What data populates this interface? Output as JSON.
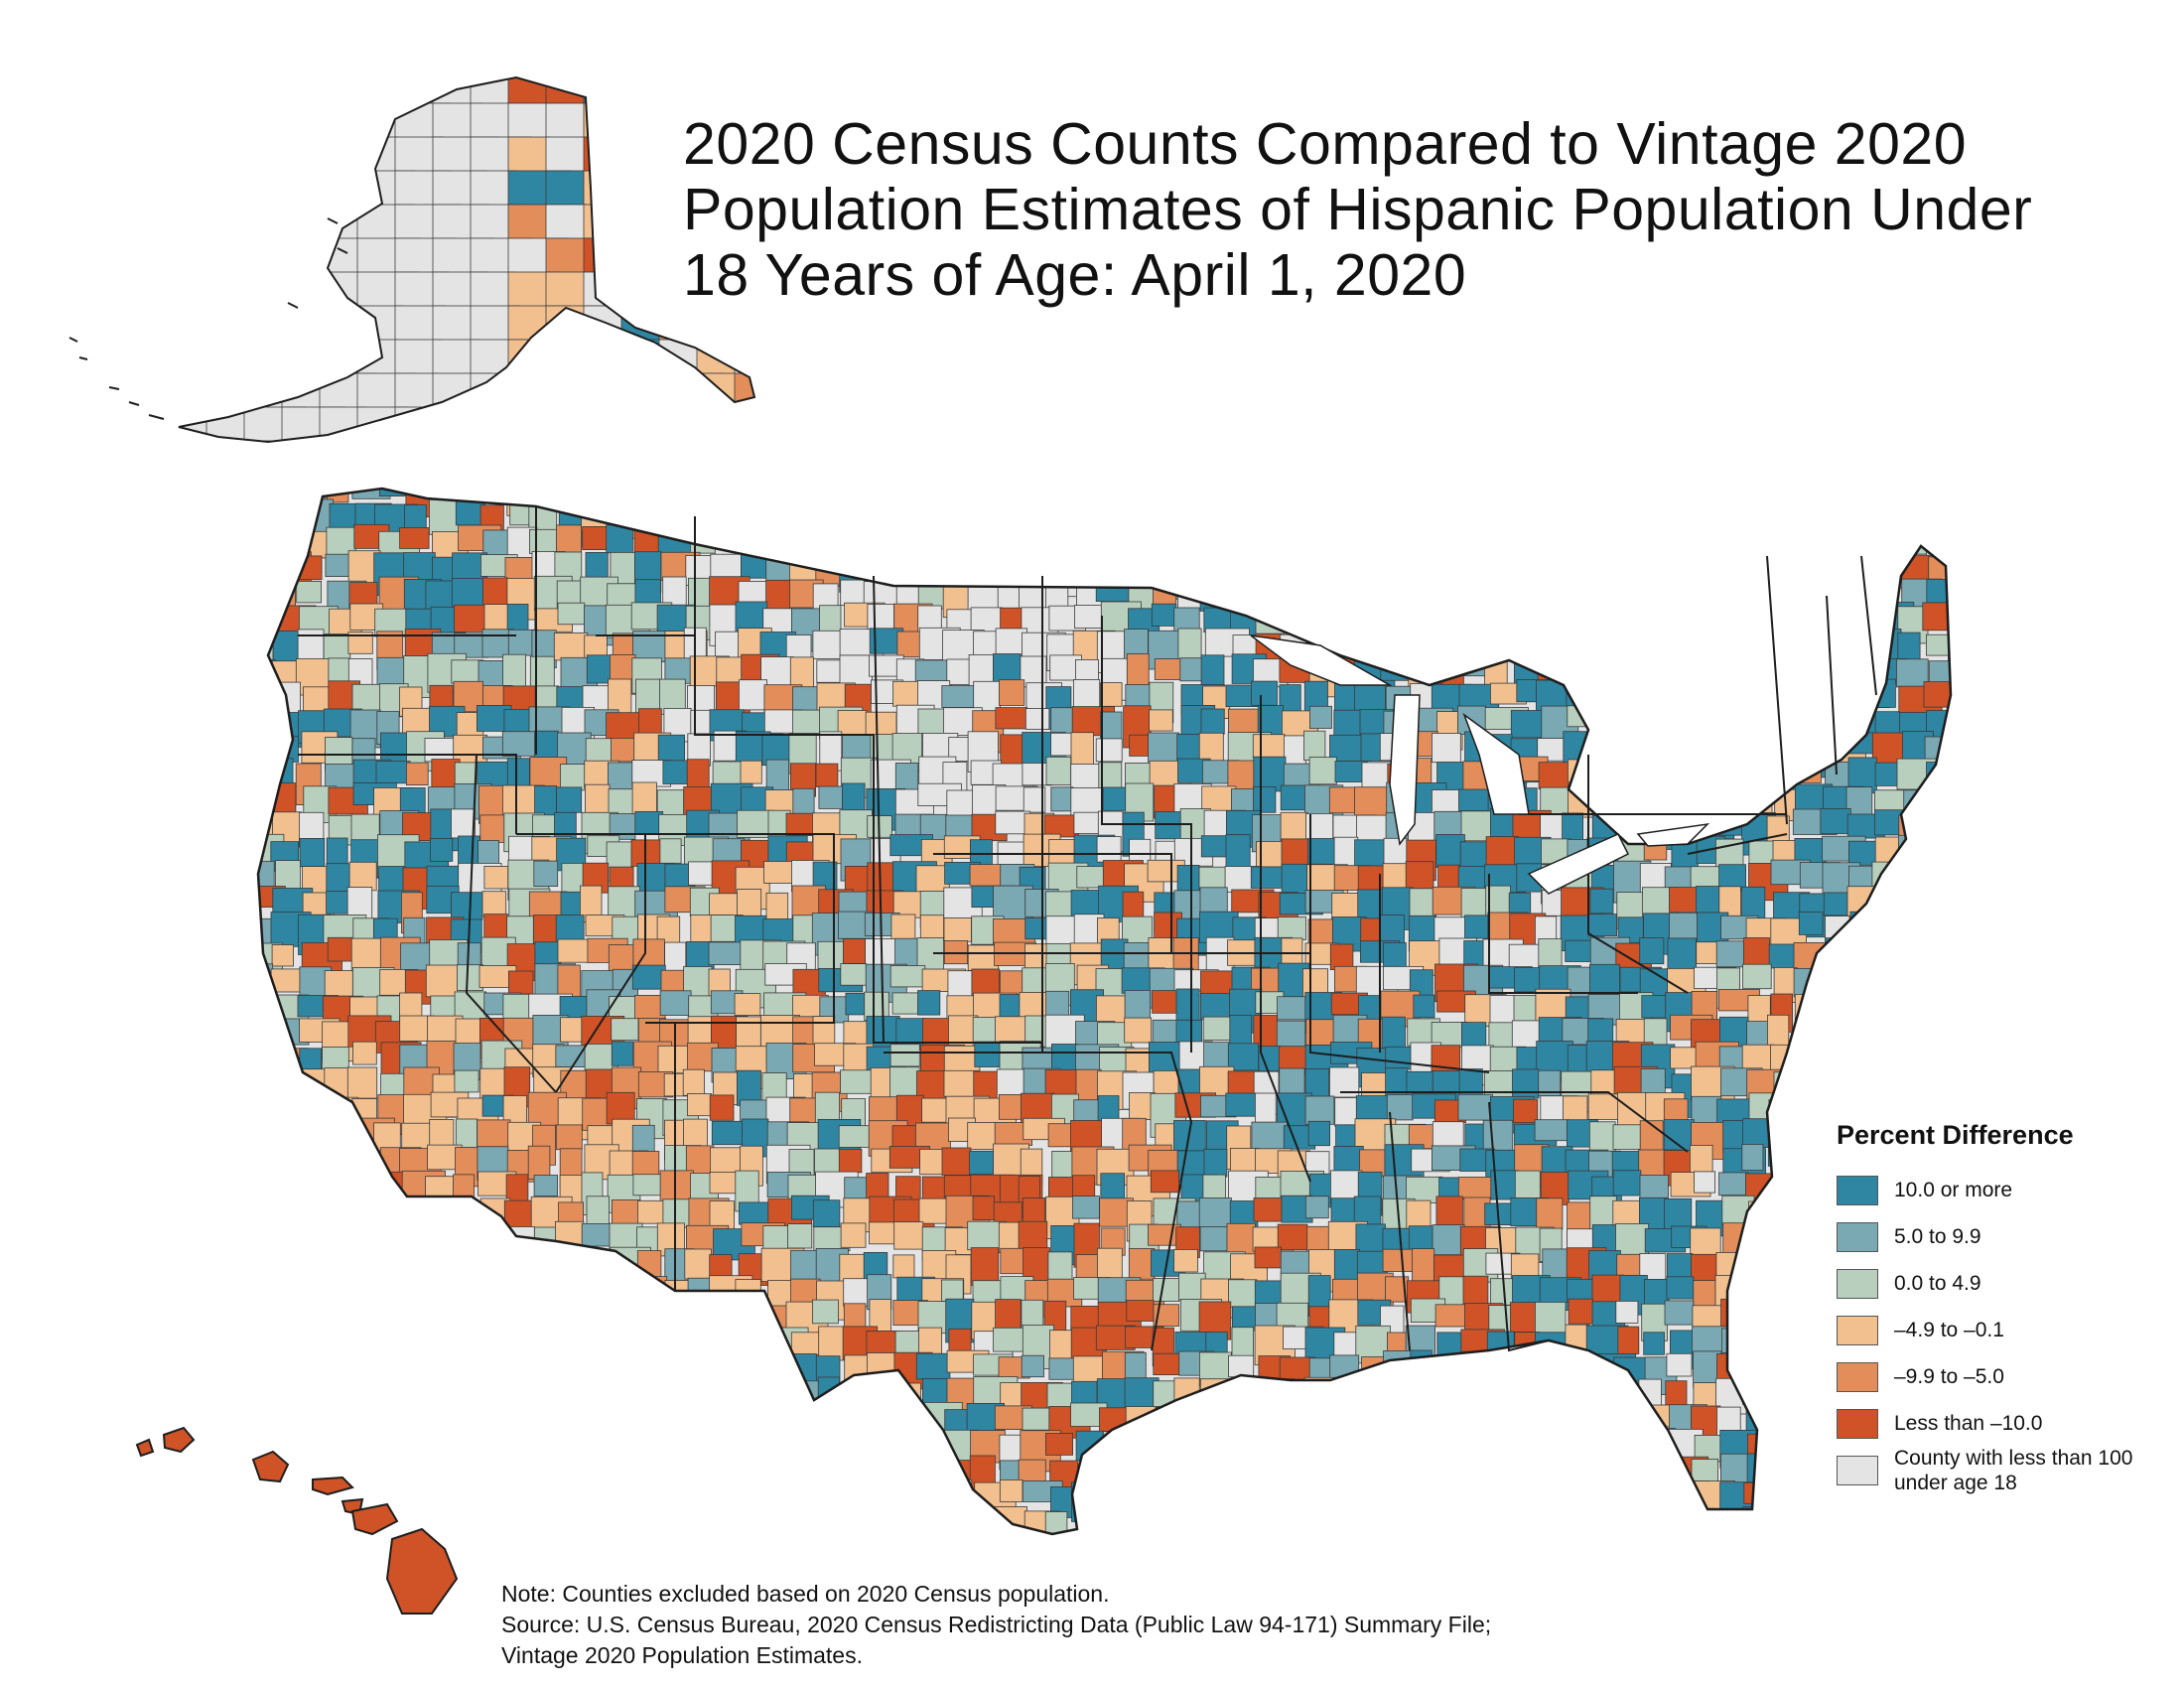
{
  "title": {
    "line1": "2020 Census Counts Compared to Vintage 2020",
    "line2": "Population Estimates of Hispanic Population Under",
    "line3": "18 Years of Age: April 1, 2020"
  },
  "legend": {
    "title": "Percent Difference",
    "items": [
      {
        "label": "10.0 or more",
        "color": "#2e86a3"
      },
      {
        "label": "5.0 to 9.9",
        "color": "#7aa8b3"
      },
      {
        "label": "0.0 to 4.9",
        "color": "#b8cfbd"
      },
      {
        "label": "–4.9 to –0.1",
        "color": "#f2c08f"
      },
      {
        "label": "–9.9 to –5.0",
        "color": "#e38d5a"
      },
      {
        "label": "Less than –10.0",
        "color": "#cf5327"
      },
      {
        "label": "County with less than 100 under age 18",
        "color": "#e4e4e4"
      }
    ]
  },
  "notes": {
    "note": "Note: Counties excluded based on 2020 Census population.",
    "source1": "Source: U.S. Census Bureau, 2020 Census Redistricting Data (Public Law 94-171) Summary File;",
    "source2": "Vintage 2020 Population Estimates."
  },
  "map": {
    "regions": [
      "contiguous-us",
      "alaska",
      "hawaii"
    ],
    "boundary_color": "#222222"
  }
}
